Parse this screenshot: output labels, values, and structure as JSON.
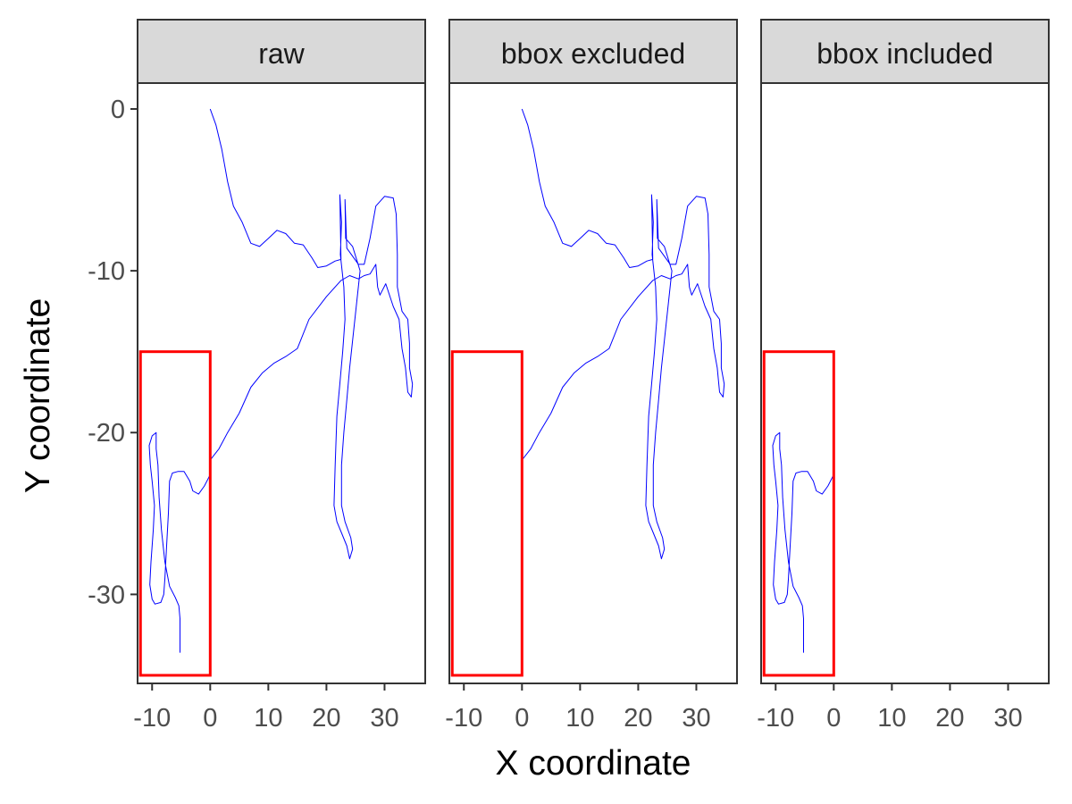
{
  "chart_data": {
    "type": "line",
    "facets": [
      "raw",
      "bbox excluded",
      "bbox included"
    ],
    "xlabel": "X coordinate",
    "ylabel": "Y coordinate",
    "xlim": [
      -12.5,
      37
    ],
    "ylim": [
      -35.5,
      1.6
    ],
    "x_ticks": [
      -10,
      0,
      10,
      20,
      30
    ],
    "x_tick_labels": [
      "-10",
      "0",
      "10",
      "20",
      "30"
    ],
    "y_ticks": [
      0,
      -10,
      -20,
      -30
    ],
    "y_tick_labels": [
      "0",
      "-10",
      "-20",
      "-30"
    ],
    "bbox": {
      "xmin": -12,
      "xmax": 0,
      "ymin": -35,
      "ymax": -15,
      "color": "#ff0000"
    },
    "track_color": "#0000ff",
    "track_outside": [
      [
        0,
        0
      ],
      [
        1,
        -1
      ],
      [
        2,
        -2.5
      ],
      [
        3,
        -4.5
      ],
      [
        4,
        -6
      ],
      [
        5.5,
        -7
      ],
      [
        7,
        -8.3
      ],
      [
        8.5,
        -8.5
      ],
      [
        10,
        -8
      ],
      [
        11.5,
        -7.5
      ],
      [
        13,
        -7.7
      ],
      [
        14.5,
        -8.3
      ],
      [
        16,
        -8.4
      ],
      [
        17.5,
        -9.2
      ],
      [
        18.5,
        -9.8
      ],
      [
        20,
        -9.7
      ],
      [
        21.5,
        -9.4
      ],
      [
        22.5,
        -9.3
      ],
      [
        22.3,
        -5.3
      ],
      [
        22.6,
        -7
      ],
      [
        22.4,
        -9
      ],
      [
        23,
        -11
      ],
      [
        23.2,
        -13
      ],
      [
        22.8,
        -15
      ],
      [
        22.3,
        -17
      ],
      [
        21.8,
        -19
      ],
      [
        21.5,
        -22
      ],
      [
        21.3,
        -24.5
      ],
      [
        21.8,
        -25.5
      ],
      [
        22.6,
        -26.2
      ],
      [
        23.5,
        -27
      ],
      [
        24,
        -27.8
      ],
      [
        24.5,
        -27.2
      ],
      [
        24.2,
        -26.5
      ],
      [
        23.2,
        -25.5
      ],
      [
        22.6,
        -24.5
      ],
      [
        22.6,
        -22
      ],
      [
        23,
        -20
      ],
      [
        23.5,
        -18
      ],
      [
        24,
        -16
      ],
      [
        24.6,
        -14
      ],
      [
        25.2,
        -12
      ],
      [
        25.8,
        -10
      ],
      [
        24.5,
        -8.5
      ],
      [
        23.3,
        -8
      ],
      [
        23.2,
        -5.6
      ],
      [
        23.5,
        -8.6
      ],
      [
        24.5,
        -9.1
      ],
      [
        25.5,
        -9.6
      ],
      [
        26.5,
        -9.6
      ],
      [
        27.5,
        -8
      ],
      [
        28.5,
        -6
      ],
      [
        30,
        -5.4
      ],
      [
        31.5,
        -5.5
      ],
      [
        32,
        -6.5
      ],
      [
        32.2,
        -9
      ],
      [
        32.2,
        -11
      ],
      [
        33,
        -12.5
      ],
      [
        34,
        -13
      ],
      [
        34.3,
        -14.5
      ],
      [
        34.3,
        -16
      ],
      [
        34.8,
        -17
      ],
      [
        34.6,
        -17.8
      ],
      [
        34,
        -17.5
      ],
      [
        33.6,
        -16
      ],
      [
        33,
        -14.8
      ],
      [
        32.5,
        -13
      ],
      [
        31.5,
        -12.2
      ],
      [
        30.2,
        -10.8
      ],
      [
        29.2,
        -11.5
      ],
      [
        28.8,
        -11
      ],
      [
        28.5,
        -9.6
      ],
      [
        27.5,
        -10.2
      ],
      [
        26.5,
        -10.3
      ],
      [
        25.5,
        -10.5
      ],
      [
        24,
        -10.3
      ],
      [
        22.5,
        -10.6
      ],
      [
        20,
        -11.6
      ],
      [
        17,
        -13
      ],
      [
        15,
        -14.8
      ],
      [
        13,
        -15.3
      ],
      [
        11,
        -15.7
      ],
      [
        9,
        -16.3
      ],
      [
        7,
        -17.2
      ],
      [
        5,
        -18.8
      ],
      [
        3,
        -20
      ],
      [
        1.5,
        -21
      ],
      [
        0,
        -21.7
      ]
    ],
    "track_inside": [
      [
        0,
        -22.6
      ],
      [
        -1,
        -23.3
      ],
      [
        -2,
        -23.8
      ],
      [
        -3,
        -23.6
      ],
      [
        -3.5,
        -23
      ],
      [
        -4.5,
        -22.4
      ],
      [
        -5.5,
        -22.4
      ],
      [
        -6.5,
        -22.5
      ],
      [
        -7,
        -23
      ],
      [
        -7.2,
        -25
      ],
      [
        -7.5,
        -27
      ],
      [
        -7.8,
        -29
      ],
      [
        -8,
        -30
      ],
      [
        -8.5,
        -30.5
      ],
      [
        -9.5,
        -30.6
      ],
      [
        -10,
        -30.3
      ],
      [
        -10.4,
        -29.4
      ],
      [
        -10.2,
        -28
      ],
      [
        -9.8,
        -26
      ],
      [
        -9.6,
        -24.5
      ],
      [
        -10,
        -23
      ],
      [
        -10.3,
        -22
      ],
      [
        -10.5,
        -20.8
      ],
      [
        -10,
        -20.2
      ],
      [
        -9.3,
        -20
      ],
      [
        -9.3,
        -21
      ],
      [
        -9,
        -22
      ],
      [
        -8.8,
        -24
      ],
      [
        -8.4,
        -26
      ],
      [
        -7.8,
        -28
      ],
      [
        -7,
        -29.5
      ],
      [
        -6,
        -30.2
      ],
      [
        -5.4,
        -30.7
      ],
      [
        -5.2,
        -31.5
      ],
      [
        -5.2,
        -33.6
      ]
    ]
  }
}
